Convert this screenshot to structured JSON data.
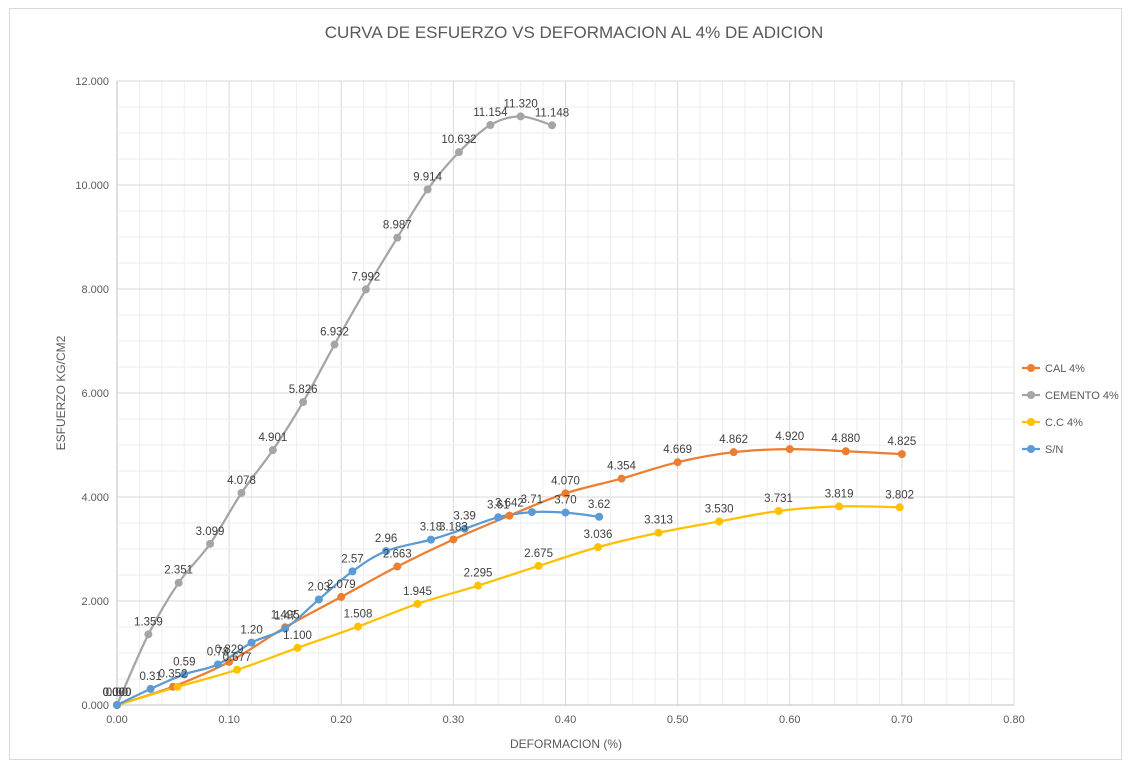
{
  "chart_data": {
    "type": "scatter",
    "title": "CURVA DE ESFUERZO VS DEFORMACION AL 4% DE ADICION",
    "xlabel": "DEFORMACION (%)",
    "ylabel": "ESFUERZO KG/CM2",
    "xlim": [
      0,
      0.8
    ],
    "ylim": [
      0,
      12
    ],
    "xticks": [
      "0.00",
      "0.10",
      "0.20",
      "0.30",
      "0.40",
      "0.50",
      "0.60",
      "0.70",
      "0.80"
    ],
    "yticks": [
      "0.000",
      "2.000",
      "4.000",
      "6.000",
      "8.000",
      "10.000",
      "12.000"
    ],
    "grid": true,
    "smooth_lines": true,
    "legend_position": "right",
    "series": [
      {
        "name": "CAL 4%",
        "color": "#ED7D31",
        "x": [
          0,
          0.05,
          0.1,
          0.15,
          0.2,
          0.25,
          0.3,
          0.35,
          0.4,
          0.45,
          0.5,
          0.55,
          0.6,
          0.65,
          0.7
        ],
        "y": [
          0,
          0.352,
          0.829,
          1.495,
          2.079,
          2.663,
          3.183,
          3.642,
          4.07,
          4.354,
          4.669,
          4.862,
          4.92,
          4.88,
          4.825
        ],
        "labels": [
          "0.000",
          "0.352",
          "0.829",
          "1.495",
          "2.079",
          "2.663",
          "3.183",
          "3.642",
          "4.070",
          "4.354",
          "4.669",
          "4.862",
          "4.920",
          "4.880",
          "4.825"
        ]
      },
      {
        "name": "CEMENTO 4%",
        "color": "#A5A5A5",
        "x": [
          0,
          0.028,
          0.055,
          0.083,
          0.111,
          0.139,
          0.166,
          0.194,
          0.222,
          0.25,
          0.277,
          0.305,
          0.333,
          0.36,
          0.388
        ],
        "y": [
          0,
          1.359,
          2.351,
          3.099,
          4.078,
          4.901,
          5.826,
          6.932,
          7.992,
          8.987,
          9.914,
          10.632,
          11.154,
          11.32,
          11.148
        ],
        "labels": [
          "0.000",
          "1.359",
          "2.351",
          "3.099",
          "4.078",
          "4.901",
          "5.826",
          "6.932",
          "7.992",
          "8.987",
          "9.914",
          "10.632",
          "11.154",
          "11.320",
          "11.148"
        ]
      },
      {
        "name": "C.C 4%",
        "color": "#FFC000",
        "x": [
          0,
          0.054,
          0.107,
          0.161,
          0.215,
          0.268,
          0.322,
          0.376,
          0.429,
          0.483,
          0.537,
          0.59,
          0.644,
          0.698
        ],
        "y": [
          0,
          0.35,
          0.677,
          1.1,
          1.508,
          1.945,
          2.295,
          2.675,
          3.036,
          3.313,
          3.53,
          3.731,
          3.819,
          3.802
        ],
        "labels": [
          "0.000",
          "",
          "0.677",
          "1.100",
          "1.508",
          "1.945",
          "2.295",
          "2.675",
          "3.036",
          "3.313",
          "3.530",
          "3.731",
          "3.819",
          "3.802"
        ]
      },
      {
        "name": "S/N",
        "color": "#5B9BD5",
        "x": [
          0,
          0.03,
          0.06,
          0.09,
          0.12,
          0.15,
          0.18,
          0.21,
          0.24,
          0.28,
          0.31,
          0.34,
          0.37,
          0.4,
          0.43
        ],
        "y": [
          0,
          0.31,
          0.59,
          0.78,
          1.2,
          1.47,
          2.03,
          2.57,
          2.96,
          3.18,
          3.39,
          3.61,
          3.71,
          3.7,
          3.62
        ],
        "labels": [
          "0.00",
          "0.31",
          "0.59",
          "0.78",
          "1.20",
          "1.47",
          "2.03",
          "2.57",
          "2.96",
          "3.18",
          "3.39",
          "3.61",
          "3.71",
          "3.70",
          "3.62"
        ]
      }
    ]
  }
}
